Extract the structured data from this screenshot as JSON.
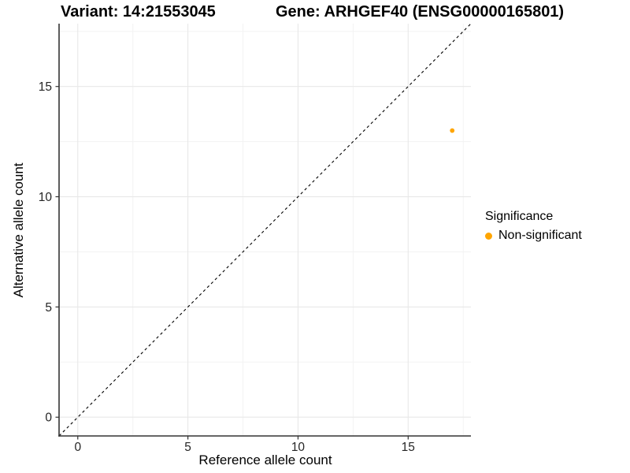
{
  "header": {
    "title_left": "Variant: 14:21553045",
    "title_right": "Gene: ARHGEF40 (ENSG00000165801)"
  },
  "chart_data": {
    "type": "scatter",
    "xlabel": "Reference allele count",
    "ylabel": "Alternative allele count",
    "xlim": [
      -0.85,
      17.85
    ],
    "ylim": [
      -0.85,
      17.85
    ],
    "xticks": [
      0,
      5,
      10,
      15
    ],
    "yticks": [
      0,
      5,
      10,
      15
    ],
    "xminor": [
      2.5,
      7.5,
      12.5,
      17.5
    ],
    "yminor": [
      2.5,
      7.5,
      12.5,
      17.5
    ],
    "grid": "major-and-minor",
    "legend_position": "right",
    "identity_line": {
      "slope": 1,
      "intercept": 0,
      "style": "dashed",
      "color": "#000000"
    },
    "series": [
      {
        "name": "Non-significant",
        "color": "#FFA500",
        "points": [
          {
            "x": 17,
            "y": 13
          }
        ]
      }
    ],
    "legend": {
      "title": "Significance",
      "entries": [
        {
          "label": "Non-significant",
          "color": "#FFA500"
        }
      ]
    }
  },
  "colors": {
    "background": "#FFFFFF",
    "axis_line": "#333333",
    "tick_mark": "#333333",
    "tick_label": "#262626",
    "grid_major": "#E8E8E8",
    "grid_minor": "#F3F3F3"
  }
}
